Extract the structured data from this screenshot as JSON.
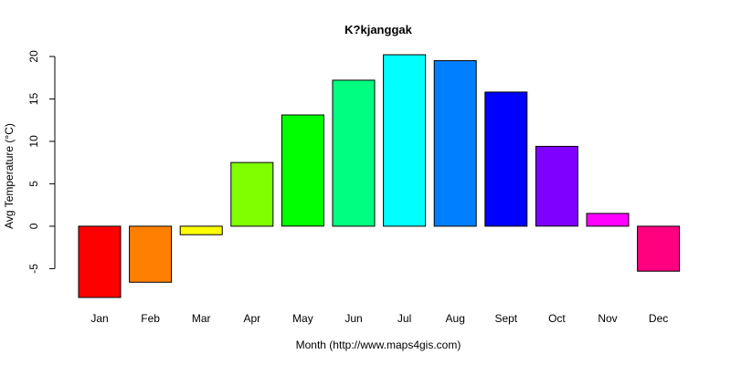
{
  "chart_data": {
    "type": "bar",
    "title": "K?kjanggak",
    "xlabel": "Month (http://www.maps4gis.com)",
    "ylabel": "Avg Temperature (°C)",
    "categories": [
      "Jan",
      "Feb",
      "Mar",
      "Apr",
      "May",
      "Jun",
      "Jul",
      "Aug",
      "Sept",
      "Oct",
      "Nov",
      "Dec"
    ],
    "values": [
      -8.4,
      -6.6,
      -1.0,
      7.5,
      13.1,
      17.2,
      20.2,
      19.5,
      15.8,
      9.4,
      1.5,
      -5.3
    ],
    "colors": [
      "#ff0000",
      "#ff8000",
      "#ffff00",
      "#80ff00",
      "#00ff00",
      "#00ff80",
      "#00ffff",
      "#0080ff",
      "#0000ff",
      "#8000ff",
      "#ff00ff",
      "#ff0080"
    ],
    "yticks": [
      -5,
      0,
      5,
      10,
      15,
      20
    ],
    "ylim": [
      -8.4,
      20.2
    ],
    "grid": false,
    "legend": "none"
  }
}
